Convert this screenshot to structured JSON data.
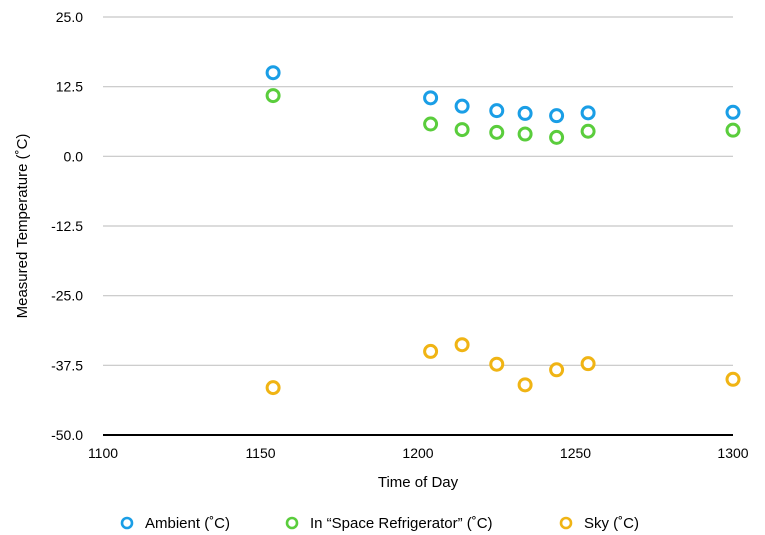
{
  "chart_data": {
    "type": "scatter",
    "title": "",
    "xlabel": "Time of Day",
    "ylabel": "Measured Temperature (˚C)",
    "xlim": [
      1100,
      1300
    ],
    "ylim": [
      -50,
      25
    ],
    "x_ticks": [
      "1100",
      "1150",
      "1200",
      "1250",
      "1300"
    ],
    "y_ticks": [
      "25.0",
      "12.5",
      "0.0",
      "-12.5",
      "-25.0",
      "-37.5",
      "-50.0"
    ],
    "grid": true,
    "legend_position": "bottom",
    "series": [
      {
        "name": "Ambient (˚C)",
        "color": "#1a9ee6",
        "x": [
          1154,
          1204,
          1214,
          1225,
          1234,
          1244,
          1254,
          1300
        ],
        "y": [
          15.0,
          10.5,
          9.0,
          8.2,
          7.7,
          7.3,
          7.8,
          7.9
        ]
      },
      {
        "name": "In “Space Refrigerator” (˚C)",
        "color": "#5acd3c",
        "x": [
          1154,
          1204,
          1214,
          1225,
          1234,
          1244,
          1254,
          1300
        ],
        "y": [
          10.9,
          5.8,
          4.8,
          4.3,
          4.0,
          3.4,
          4.5,
          4.7
        ]
      },
      {
        "name": "Sky (˚C)",
        "color": "#f0b414",
        "x": [
          1154,
          1204,
          1214,
          1225,
          1234,
          1244,
          1254,
          1300
        ],
        "y": [
          -41.5,
          -35.0,
          -33.8,
          -37.3,
          -41.0,
          -38.3,
          -37.2,
          -40.0
        ]
      }
    ]
  }
}
